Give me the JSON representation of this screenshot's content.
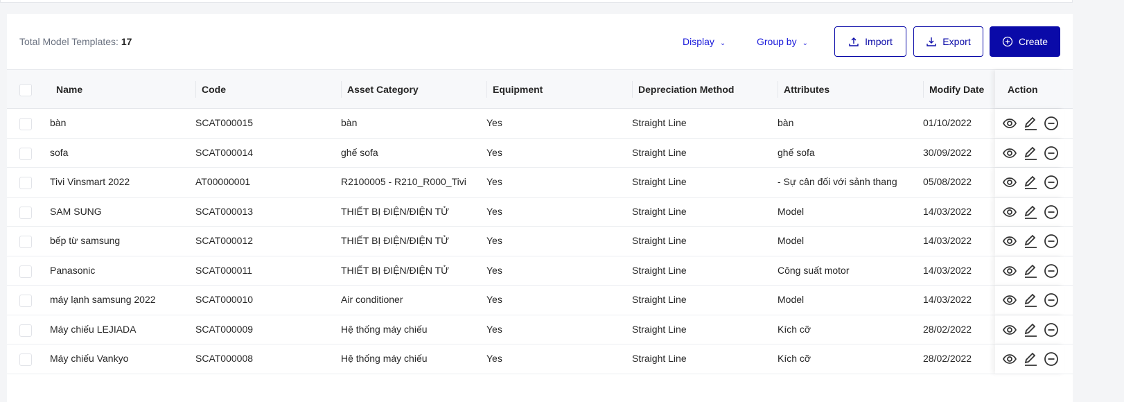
{
  "header": {
    "total_label": "Total Model Templates:",
    "total_count": "17",
    "display": "Display",
    "group_by": "Group by",
    "import": "Import",
    "export": "Export",
    "create": "Create"
  },
  "colors": {
    "primary": "#0a0aa8",
    "link": "#1a1adb"
  },
  "columns": [
    "Name",
    "Code",
    "Asset Category",
    "Equipment",
    "Depreciation Method",
    "Attributes",
    "Modify Date",
    "Action"
  ],
  "rows": [
    [
      "bàn",
      "SCAT000015",
      "bàn",
      "Yes",
      "Straight Line",
      "bàn",
      "01/10/2022"
    ],
    [
      "sofa",
      "SCAT000014",
      "ghế sofa",
      "Yes",
      "Straight Line",
      "ghế sofa",
      "30/09/2022"
    ],
    [
      "Tivi Vinsmart 2022",
      "AT00000001",
      "R2100005 - R210_R000_Tivi",
      "Yes",
      "Straight Line",
      "- Sự cân đối với sảnh thang",
      "05/08/2022"
    ],
    [
      "SAM SUNG",
      "SCAT000013",
      "THIẾT BỊ ĐIỆN/ĐIỆN TỬ",
      "Yes",
      "Straight Line",
      "Model",
      "14/03/2022"
    ],
    [
      "bếp từ samsung",
      "SCAT000012",
      "THIẾT BỊ ĐIỆN/ĐIỆN TỬ",
      "Yes",
      "Straight Line",
      "Model",
      "14/03/2022"
    ],
    [
      "Panasonic",
      "SCAT000011",
      "THIẾT BỊ ĐIỆN/ĐIỆN TỬ",
      "Yes",
      "Straight Line",
      "Công suất motor",
      "14/03/2022"
    ],
    [
      "máy lạnh samsung 2022",
      "SCAT000010",
      "Air conditioner",
      "Yes",
      "Straight Line",
      "Model",
      "14/03/2022"
    ],
    [
      "Máy chiếu LEJIADA",
      "SCAT000009",
      "Hệ thống máy chiếu",
      "Yes",
      "Straight Line",
      "Kích cỡ",
      "28/02/2022"
    ],
    [
      "Máy chiếu Vankyo",
      "SCAT000008",
      "Hệ thống máy chiếu",
      "Yes",
      "Straight Line",
      "Kích cỡ",
      "28/02/2022"
    ]
  ]
}
